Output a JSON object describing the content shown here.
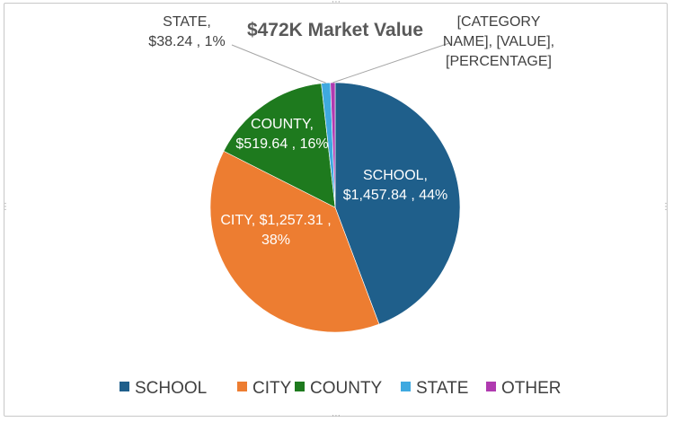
{
  "chart_data": {
    "type": "pie",
    "title": "$472K Market Value",
    "categories": [
      "SCHOOL",
      "CITY",
      "COUNTY",
      "STATE",
      "OTHER"
    ],
    "values": [
      1457.84,
      1257.31,
      519.64,
      38.24,
      20.0
    ],
    "data_labels": [
      [
        "SCHOOL,",
        "$1,457.84 , 44%"
      ],
      [
        "CITY, $1,257.31 ,",
        "38%"
      ],
      [
        "COUNTY,",
        "$519.64 , 16%"
      ],
      [
        "STATE,",
        "$38.24 , 1%"
      ],
      [
        "[CATEGORY",
        "NAME], [VALUE],",
        "[PERCENTAGE]"
      ]
    ],
    "colors": [
      "#1f5f8b",
      "#ed7d31",
      "#1e7a1e",
      "#3fa9e0",
      "#b03ab0"
    ],
    "legend_position": "bottom"
  }
}
